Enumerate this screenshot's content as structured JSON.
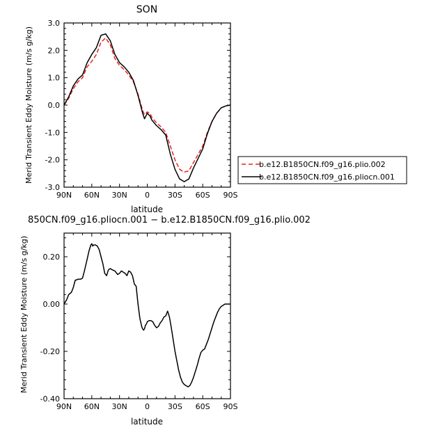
{
  "chart_data": [
    {
      "type": "line",
      "title": "SON",
      "xlabel": "latitude",
      "ylabel": "Merid Transient Eddy Moisture  (m/s g/kg)",
      "xlim": [
        90,
        -90
      ],
      "ylim": [
        -3.0,
        3.0
      ],
      "xticks": [
        90,
        60,
        30,
        0,
        -30,
        -60,
        -90
      ],
      "xtick_labels": [
        "90N",
        "60N",
        "30N",
        "0",
        "30S",
        "60S",
        "90S"
      ],
      "yticks": [
        3.0,
        2.0,
        1.0,
        0.0,
        -1.0,
        -2.0,
        -3.0
      ],
      "ytick_labels": [
        "3.0",
        "2.0",
        "1.0",
        "0.0",
        "-1.0",
        "-2.0",
        "-3.0"
      ],
      "legend_position": "right",
      "series": [
        {
          "name": "b.e12.B1850CN.f09_g16.plio.002",
          "color": "#e8221c",
          "dash": "dashed",
          "x": [
            90,
            85,
            80,
            75,
            70,
            65,
            60,
            55,
            50,
            45,
            40,
            35,
            30,
            25,
            20,
            15,
            10,
            5,
            3,
            0,
            -3,
            -5,
            -10,
            -15,
            -20,
            -25,
            -30,
            -35,
            -40,
            -45,
            -50,
            -55,
            -60,
            -65,
            -70,
            -75,
            -80,
            -85,
            -90
          ],
          "y": [
            0.0,
            0.25,
            0.6,
            0.85,
            1.0,
            1.4,
            1.6,
            1.85,
            2.3,
            2.45,
            2.2,
            1.7,
            1.45,
            1.3,
            1.1,
            0.85,
            0.4,
            -0.2,
            -0.35,
            -0.25,
            -0.3,
            -0.45,
            -0.65,
            -0.8,
            -1.0,
            -1.5,
            -2.0,
            -2.35,
            -2.45,
            -2.4,
            -2.1,
            -1.8,
            -1.5,
            -1.0,
            -0.6,
            -0.3,
            -0.1,
            -0.03,
            0.0
          ]
        },
        {
          "name": "b.e12.B1850CN.f09_g16.pliocn.001",
          "color": "#000000",
          "dash": "solid",
          "x": [
            90,
            85,
            80,
            75,
            70,
            65,
            60,
            55,
            50,
            45,
            40,
            35,
            30,
            25,
            20,
            15,
            10,
            5,
            3,
            0,
            -3,
            -5,
            -10,
            -15,
            -20,
            -25,
            -30,
            -35,
            -40,
            -45,
            -50,
            -55,
            -60,
            -65,
            -70,
            -75,
            -80,
            -85,
            -90
          ],
          "y": [
            0.0,
            0.3,
            0.7,
            0.95,
            1.1,
            1.55,
            1.85,
            2.1,
            2.55,
            2.6,
            2.35,
            1.85,
            1.55,
            1.4,
            1.2,
            0.9,
            0.35,
            -0.3,
            -0.5,
            -0.3,
            -0.4,
            -0.55,
            -0.75,
            -0.9,
            -1.1,
            -1.8,
            -2.35,
            -2.7,
            -2.8,
            -2.7,
            -2.3,
            -1.95,
            -1.6,
            -1.05,
            -0.6,
            -0.3,
            -0.1,
            -0.03,
            0.0
          ]
        }
      ]
    },
    {
      "type": "line",
      "title": "850CN.f09_g16.pliocn.001 − b.e12.B1850CN.f09_g16.plio.002",
      "xlabel": "latitude",
      "ylabel": "Merid Transient Eddy Moisture  (m/s g/kg)",
      "xlim": [
        90,
        -90
      ],
      "ylim": [
        -0.4,
        0.3
      ],
      "xticks": [
        90,
        60,
        30,
        0,
        -30,
        -60,
        -90
      ],
      "xtick_labels": [
        "90N",
        "60N",
        "30N",
        "0",
        "30S",
        "60S",
        "90S"
      ],
      "yticks": [
        0.2,
        0.0,
        -0.2,
        -0.4
      ],
      "ytick_labels": [
        "0.20",
        "0.00",
        "-0.20",
        "-0.40"
      ],
      "series": [
        {
          "color": "#000000",
          "dash": "solid",
          "x": [
            90,
            87,
            85,
            82,
            80,
            78,
            75,
            72,
            70,
            68,
            65,
            63,
            61,
            60,
            59,
            58,
            56,
            54,
            52,
            50,
            48,
            46,
            44,
            42,
            40,
            38,
            35,
            32,
            30,
            28,
            26,
            24,
            22,
            20,
            18,
            16,
            14,
            12,
            10,
            8,
            6,
            5,
            4,
            3,
            2,
            1,
            0,
            -2,
            -4,
            -6,
            -8,
            -10,
            -12,
            -14,
            -16,
            -18,
            -20,
            -22,
            -24,
            -26,
            -28,
            -30,
            -32,
            -34,
            -36,
            -38,
            -40,
            -42,
            -44,
            -46,
            -48,
            -50,
            -52,
            -54,
            -56,
            -58,
            -60,
            -62,
            -64,
            -66,
            -68,
            -70,
            -72,
            -74,
            -76,
            -78,
            -80,
            -82,
            -84,
            -86,
            -88,
            -90
          ],
          "y": [
            0.0,
            0.02,
            0.04,
            0.05,
            0.07,
            0.1,
            0.105,
            0.105,
            0.11,
            0.14,
            0.19,
            0.225,
            0.25,
            0.255,
            0.245,
            0.25,
            0.25,
            0.245,
            0.23,
            0.2,
            0.17,
            0.13,
            0.12,
            0.145,
            0.15,
            0.145,
            0.14,
            0.125,
            0.13,
            0.14,
            0.135,
            0.13,
            0.12,
            0.14,
            0.135,
            0.12,
            0.085,
            0.075,
            0.0,
            -0.06,
            -0.095,
            -0.105,
            -0.11,
            -0.105,
            -0.09,
            -0.085,
            -0.075,
            -0.07,
            -0.07,
            -0.075,
            -0.09,
            -0.1,
            -0.095,
            -0.08,
            -0.07,
            -0.055,
            -0.05,
            -0.03,
            -0.055,
            -0.1,
            -0.15,
            -0.2,
            -0.24,
            -0.28,
            -0.31,
            -0.33,
            -0.34,
            -0.345,
            -0.35,
            -0.345,
            -0.33,
            -0.31,
            -0.285,
            -0.26,
            -0.23,
            -0.205,
            -0.195,
            -0.19,
            -0.17,
            -0.15,
            -0.125,
            -0.1,
            -0.075,
            -0.055,
            -0.035,
            -0.02,
            -0.01,
            -0.005,
            0.0,
            0.0,
            0.0,
            0.0
          ]
        }
      ]
    }
  ]
}
